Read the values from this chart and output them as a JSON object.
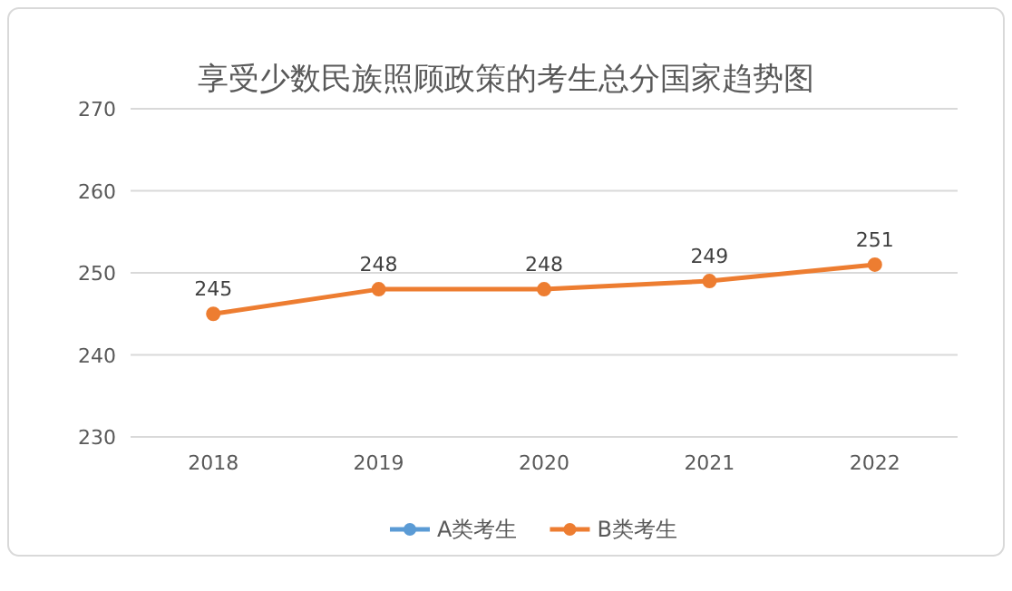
{
  "chart_data": {
    "type": "line",
    "title": "享受少数民族照顾政策的考生总分国家趋势图",
    "categories": [
      "2018",
      "2019",
      "2020",
      "2021",
      "2022"
    ],
    "series": [
      {
        "name": "A类考生",
        "color": "#5b9bd5",
        "values": [
          null,
          null,
          null,
          null,
          null
        ]
      },
      {
        "name": "B类考生",
        "color": "#ed7d31",
        "values": [
          245,
          248,
          248,
          249,
          251
        ]
      }
    ],
    "ylim": [
      230,
      270
    ],
    "yticks": [
      230,
      240,
      250,
      260,
      270
    ],
    "grid": "y",
    "legend": "bottom",
    "marker": "circle",
    "data_labels": true
  }
}
